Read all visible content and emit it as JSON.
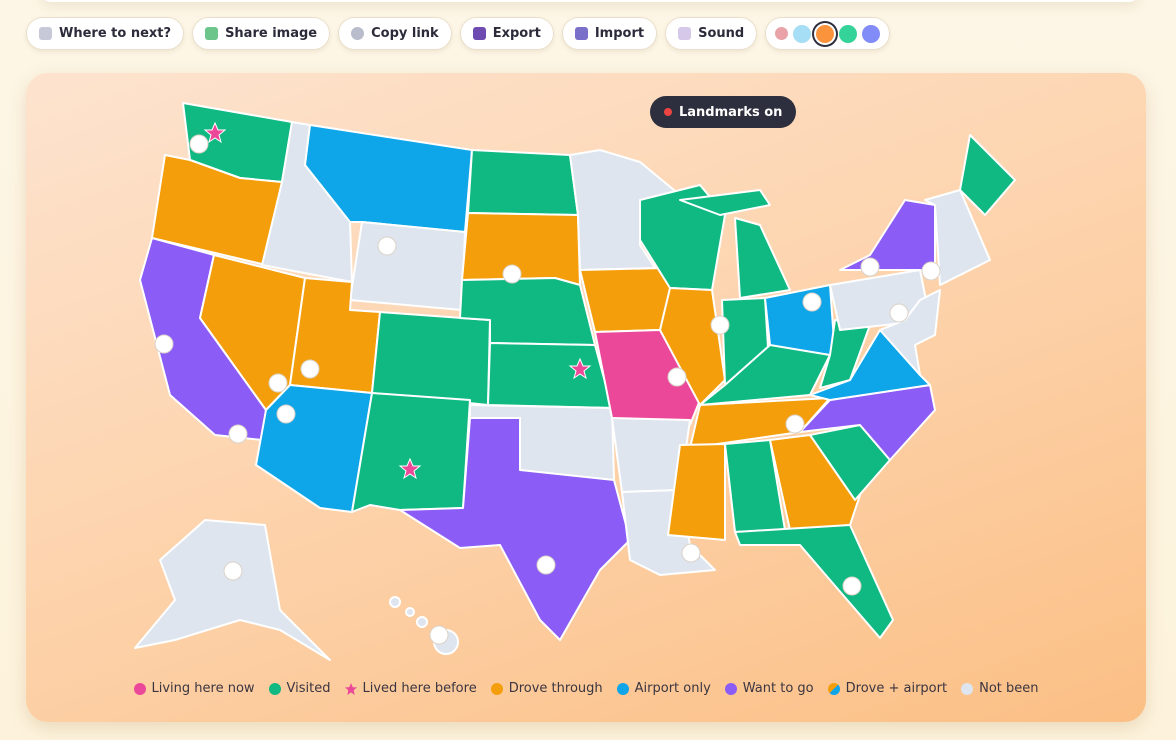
{
  "toolbar": {
    "buttons": [
      "Where to next?",
      "Share image",
      "Copy link",
      "Export",
      "Import",
      "Sound"
    ]
  },
  "map": {
    "toggle": "Landmarks on",
    "legend": [
      "Living here now",
      "Visited",
      "Lived here before",
      "Drove through",
      "Airport only",
      "Want to go",
      "Drove + airport",
      "Not been"
    ]
  }
}
